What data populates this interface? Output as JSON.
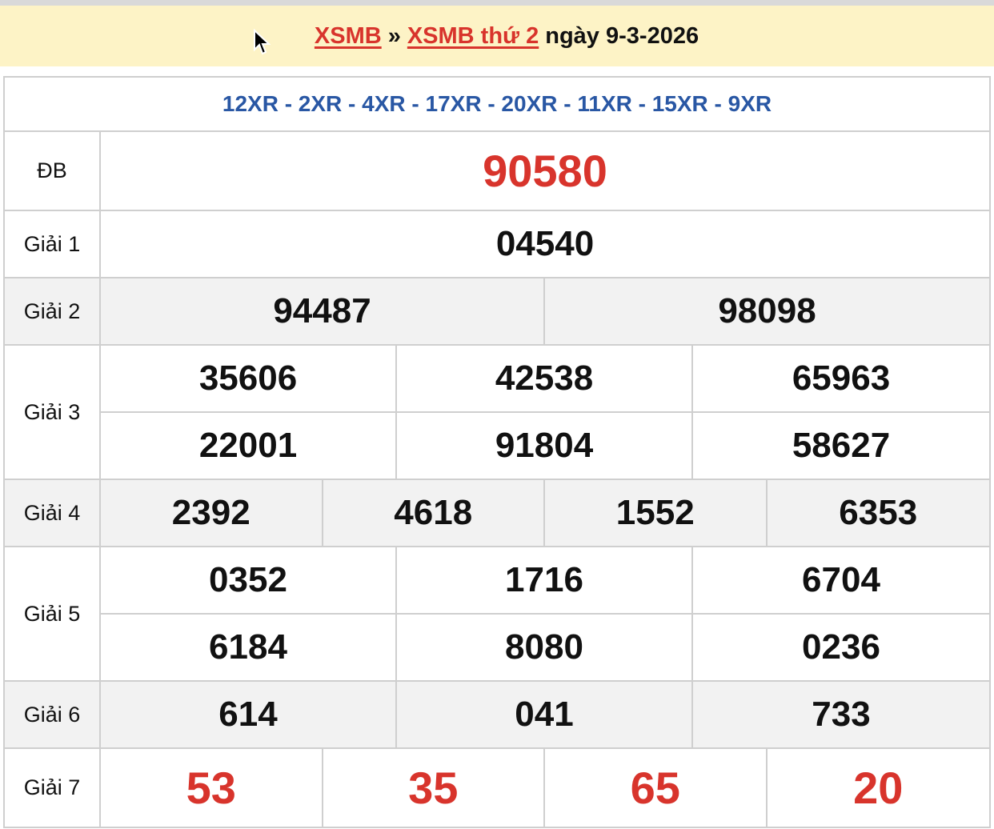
{
  "breadcrumb": {
    "home": "XSMB",
    "sep": "»",
    "section": "XSMB thứ 2",
    "suffix": "ngày 9-3-2026"
  },
  "codes": "12XR - 2XR - 4XR - 17XR - 20XR - 11XR - 15XR - 9XR",
  "prizes": [
    {
      "label": "ĐB",
      "cols": 1,
      "values": [
        "90580"
      ]
    },
    {
      "label": "Giải 1",
      "cols": 1,
      "values": [
        "04540"
      ]
    },
    {
      "label": "Giải 2",
      "cols": 2,
      "values": [
        "94487",
        "98098"
      ]
    },
    {
      "label": "Giải 3",
      "cols": 3,
      "values": [
        "35606",
        "42538",
        "65963",
        "22001",
        "91804",
        "58627"
      ]
    },
    {
      "label": "Giải 4",
      "cols": 4,
      "values": [
        "2392",
        "4618",
        "1552",
        "6353"
      ]
    },
    {
      "label": "Giải 5",
      "cols": 3,
      "values": [
        "0352",
        "1716",
        "6704",
        "6184",
        "8080",
        "0236"
      ]
    },
    {
      "label": "Giải 6",
      "cols": 3,
      "values": [
        "614",
        "041",
        "733"
      ]
    },
    {
      "label": "Giải 7",
      "cols": 4,
      "values": [
        "53",
        "35",
        "65",
        "20"
      ]
    }
  ],
  "colors": {
    "accent_red": "#d8342c",
    "code_blue": "#2957a4",
    "header_bg": "#fdf3c6",
    "alt_row": "#f2f2f2"
  }
}
